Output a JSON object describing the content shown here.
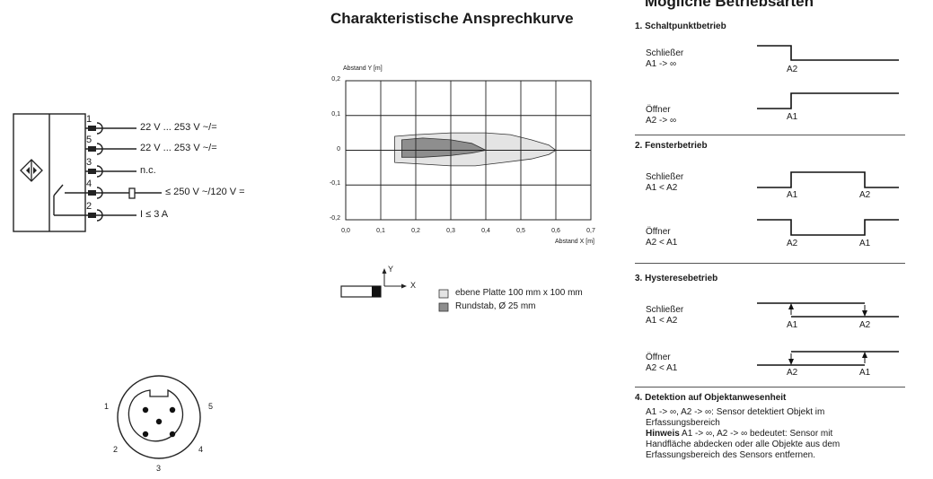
{
  "wiring": {
    "pins": [
      {
        "num": "1",
        "label": "22 V ... 253 V ~/="
      },
      {
        "num": "5",
        "label": "22 V ... 253 V ~/="
      },
      {
        "num": "3",
        "label": "n.c."
      },
      {
        "num": "4",
        "label": "≤ 250 V ~/120 V ="
      },
      {
        "num": "2",
        "label": "I ≤ 3 A"
      }
    ]
  },
  "connector": {
    "pin_labels": {
      "p1": "1",
      "p2": "2",
      "p3": "3",
      "p4": "4",
      "p5": "5"
    }
  },
  "chart": {
    "title": "Charakteristische Ansprechkurve",
    "legend": {
      "flat_plate": "ebene Platte 100 mm x 100 mm",
      "round_bar": "Rundstab, Ø 25 mm"
    },
    "coord_labels": {
      "y": "Y",
      "x": "X"
    },
    "colors": {
      "flat_plate": "#e4e4e4",
      "round_bar": "#8e8e8e"
    }
  },
  "chart_data": {
    "type": "area",
    "xlabel": "Abstand X [m]",
    "ylabel": "Abstand Y [m]",
    "xlim": [
      0,
      0.7
    ],
    "ylim": [
      -0.2,
      0.2
    ],
    "x_ticks": [
      "0,0",
      "0,1",
      "0,2",
      "0,3",
      "0,4",
      "0,5",
      "0,6",
      "0,7"
    ],
    "y_ticks": [
      "0,2",
      "0,1",
      "0",
      "-0,1",
      "-0,2"
    ],
    "grid": true,
    "series": [
      {
        "name": "ebene Platte 100 mm x 100 mm",
        "points": [
          [
            0.14,
            0.04
          ],
          [
            0.2,
            0.045
          ],
          [
            0.3,
            0.05
          ],
          [
            0.4,
            0.05
          ],
          [
            0.47,
            0.045
          ],
          [
            0.53,
            0.03
          ],
          [
            0.58,
            0.015
          ],
          [
            0.6,
            0.0
          ],
          [
            0.58,
            -0.012
          ],
          [
            0.53,
            -0.025
          ],
          [
            0.45,
            -0.035
          ],
          [
            0.37,
            -0.045
          ],
          [
            0.3,
            -0.045
          ],
          [
            0.22,
            -0.04
          ],
          [
            0.14,
            -0.035
          ]
        ]
      },
      {
        "name": "Rundstab, Ø 25 mm",
        "points": [
          [
            0.16,
            0.03
          ],
          [
            0.22,
            0.035
          ],
          [
            0.3,
            0.03
          ],
          [
            0.36,
            0.02
          ],
          [
            0.4,
            0.0
          ],
          [
            0.36,
            -0.008
          ],
          [
            0.3,
            -0.015
          ],
          [
            0.22,
            -0.02
          ],
          [
            0.16,
            -0.02
          ]
        ]
      }
    ]
  },
  "modes": {
    "title": "Mögliche Betriebsarten",
    "s1": {
      "title": "1. Schaltpunktbetrieb",
      "a": {
        "line1": "Schließer",
        "line2": "A1 -> ∞",
        "m1": "A2"
      },
      "b": {
        "line1": "Öffner",
        "line2": "A2 -> ∞",
        "m1": "A1"
      }
    },
    "s2": {
      "title": "2. Fensterbetrieb",
      "a": {
        "line1": "Schließer",
        "line2": "A1 < A2",
        "m1": "A1",
        "m2": "A2"
      },
      "b": {
        "line1": "Öffner",
        "line2": "A2 < A1",
        "m1": "A2",
        "m2": "A1"
      }
    },
    "s3": {
      "title": "3. Hysteresebetrieb",
      "a": {
        "line1": "Schließer",
        "line2": "A1 < A2",
        "m1": "A1",
        "m2": "A2"
      },
      "b": {
        "line1": "Öffner",
        "line2": "A2 < A1",
        "m1": "A2",
        "m2": "A1"
      }
    },
    "s4": {
      "title": "4. Detektion auf Objektanwesenheit",
      "desc1": "A1 -> ∞, A2 -> ∞: Sensor detektiert Objekt im",
      "desc2": "Erfassungsbereich",
      "hint_label": "Hinweis",
      "hint1": " A1 -> ∞, A2 -> ∞ bedeutet: Sensor mit",
      "hint2": "Handfläche abdecken oder alle Objekte aus dem",
      "hint3": "Erfassungsbereich des Sensors entfernen."
    }
  }
}
